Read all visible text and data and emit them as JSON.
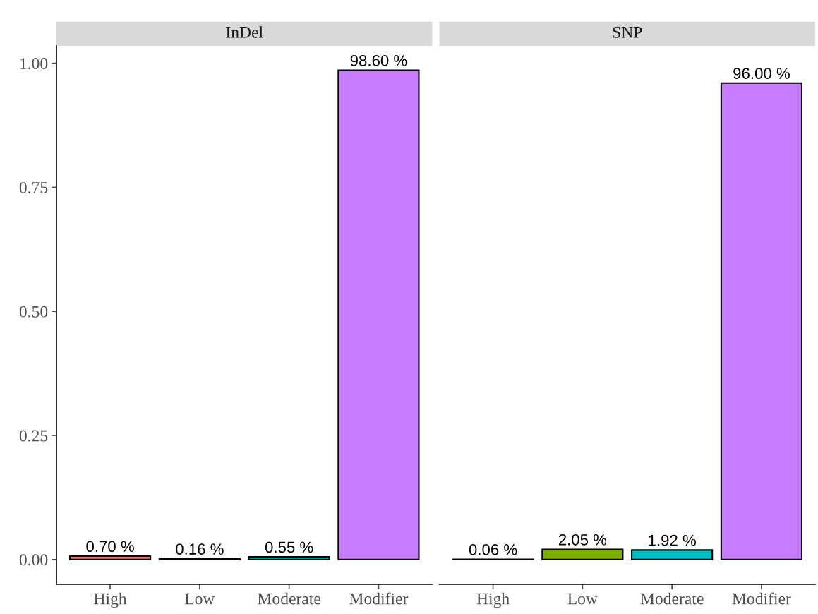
{
  "chart_data": [
    {
      "type": "bar",
      "title": "InDel",
      "categories": [
        "High",
        "Low",
        "Moderate",
        "Modifier"
      ],
      "values": [
        0.007,
        0.0016,
        0.0055,
        0.986
      ],
      "colors": [
        "#f8766d",
        "#7cae00",
        "#00bfc4",
        "#c77cff"
      ],
      "value_labels": [
        "0.70 %",
        "0.16 %",
        "0.55 %",
        "98.60 %"
      ],
      "ylim": [
        -0.05,
        1.035
      ],
      "yticks": [
        {
          "value": 0,
          "label": "0.00"
        },
        {
          "value": 0.25,
          "label": "0.25"
        },
        {
          "value": 0.5,
          "label": "0.50"
        },
        {
          "value": 0.75,
          "label": "0.75"
        },
        {
          "value": 1,
          "label": "1.00"
        }
      ],
      "grid": false,
      "legend": false
    },
    {
      "type": "bar",
      "title": "SNP",
      "categories": [
        "High",
        "Low",
        "Moderate",
        "Modifier"
      ],
      "values": [
        0.0006,
        0.0205,
        0.0192,
        0.96
      ],
      "colors": [
        "#f8766d",
        "#7cae00",
        "#00bfc4",
        "#c77cff"
      ],
      "value_labels": [
        "0.06 %",
        "2.05 %",
        "1.92 %",
        "96.00 %"
      ],
      "tick_labels": "x",
      "grid": false,
      "legend": false
    }
  ]
}
